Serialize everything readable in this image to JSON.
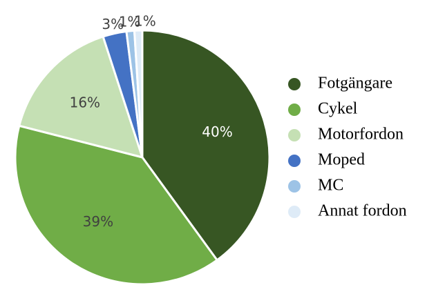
{
  "chart_data": {
    "type": "pie",
    "categories": [
      "Fotgängare",
      "Cykel",
      "Motorfordon",
      "Moped",
      "MC",
      "Annat fordon"
    ],
    "values": [
      40,
      39,
      16,
      3,
      1,
      1
    ],
    "value_labels": [
      "40%",
      "39%",
      "16%",
      "3%",
      "1%",
      "1%"
    ],
    "colors": [
      "#375623",
      "#70ad47",
      "#c5e0b4",
      "#4472c4",
      "#9dc3e6",
      "#deebf7"
    ],
    "legend": "right"
  }
}
